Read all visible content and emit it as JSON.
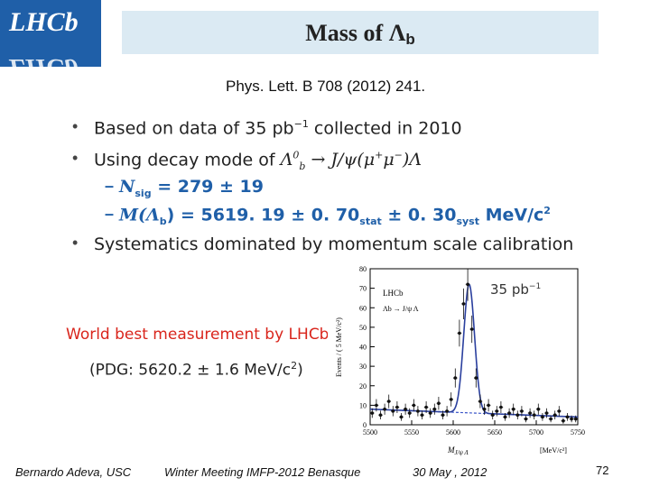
{
  "logo": {
    "text": "LHCb"
  },
  "title": {
    "main": "Mass of Λ",
    "sub": "b"
  },
  "reference": "Phys. Lett. B 708 (2012) 241.",
  "bullets": {
    "b1": {
      "pre": "Based on data of 35 pb",
      "sup": "−1",
      "post": " collected in 2010"
    },
    "b2": {
      "pre": "Using decay mode of ",
      "math": "Λ",
      "sup": "0",
      "sub": "b",
      "post": " → J/ψ(μ",
      "s2": "+",
      "mid": "μ",
      "s3": "−",
      "end": ")Λ"
    },
    "d1": {
      "text": "N",
      "sub": "sig",
      "post": " = 279 ± 19"
    },
    "d2": {
      "pre": "M(Λ",
      "sub": "b",
      "mid": ") = 5619. 19 ± 0. 70",
      "stat": "stat",
      "mid2": " ± 0. 30",
      "syst": "syst",
      "post": " MeV/c",
      "sup": "2"
    },
    "b3": {
      "text": "Systematics dominated by momentum scale calibration"
    }
  },
  "world_best": "World best measurement by LHCb",
  "pdg": {
    "pre": "(PDG: 5620.2 ± 1.6 MeV/c",
    "sup": "2",
    "post": ")"
  },
  "chart_data": {
    "type": "scatter",
    "title": "",
    "experiment_label": "LHCb",
    "decay_label": "Λb → J/ψ Λ",
    "lumi_label": "35 pb",
    "lumi_sup": "−1",
    "ylabel": "Events / ( 5 MeV/c²)",
    "xlabel": "M",
    "xlabel_sub": "J/ψ Λ",
    "xunit": "[MeV/c²]",
    "xlim": [
      5500,
      5750
    ],
    "ylim": [
      0,
      80
    ],
    "xticks": [
      5500,
      5550,
      5600,
      5650,
      5700,
      5750
    ],
    "yticks": [
      0,
      10,
      20,
      30,
      40,
      50,
      60,
      70,
      80
    ],
    "x": [
      5502.5,
      5507.5,
      5512.5,
      5517.5,
      5522.5,
      5527.5,
      5532.5,
      5537.5,
      5542.5,
      5547.5,
      5552.5,
      5557.5,
      5562.5,
      5567.5,
      5572.5,
      5577.5,
      5582.5,
      5587.5,
      5592.5,
      5597.5,
      5602.5,
      5607.5,
      5612.5,
      5617.5,
      5622.5,
      5627.5,
      5632.5,
      5637.5,
      5642.5,
      5647.5,
      5652.5,
      5657.5,
      5662.5,
      5667.5,
      5672.5,
      5677.5,
      5682.5,
      5687.5,
      5692.5,
      5697.5,
      5702.5,
      5707.5,
      5712.5,
      5717.5,
      5722.5,
      5727.5,
      5732.5,
      5737.5,
      5742.5,
      5747.5
    ],
    "y": [
      6,
      10,
      5,
      8,
      12,
      7,
      9,
      4,
      8,
      6,
      10,
      7,
      5,
      9,
      6,
      8,
      11,
      5,
      7,
      13,
      24,
      47,
      62,
      72,
      49,
      24,
      12,
      8,
      10,
      5,
      7,
      9,
      4,
      6,
      8,
      5,
      7,
      3,
      6,
      5,
      8,
      4,
      6,
      3,
      5,
      7,
      2,
      4,
      3,
      3
    ],
    "signal_fit": {
      "mean": 5619.19,
      "sigma": 6.5,
      "peak": 66,
      "background": 6.5
    },
    "background_fit": {
      "at_xmin": 8,
      "at_xmax": 4
    },
    "colors": {
      "fit": "#2a3f9e",
      "background": "#3a55c8",
      "points": "#111111"
    }
  },
  "footer": {
    "author": "Bernardo Adeva, USC",
    "meeting": "Winter Meeting IMFP-2012  Benasque",
    "date": "30 May , 2012",
    "page": "72"
  }
}
